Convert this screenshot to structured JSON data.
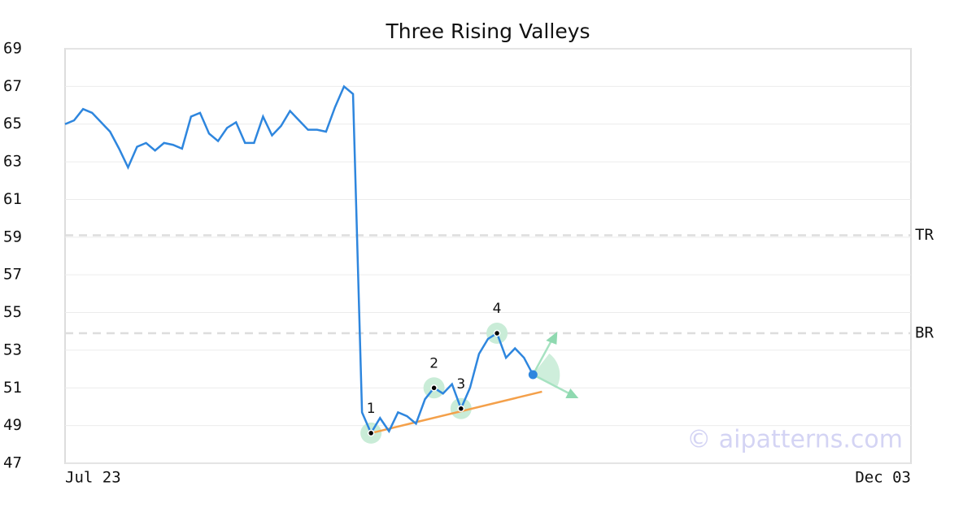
{
  "chart_data": {
    "type": "line",
    "title": "Three Rising Valleys",
    "categories": [
      "Jul 23",
      null,
      null,
      null,
      null,
      null,
      null,
      null,
      null,
      null,
      null,
      null,
      null,
      null,
      null,
      null,
      null,
      null,
      null,
      null,
      null,
      null,
      null,
      null,
      null,
      null,
      null,
      null,
      null,
      null,
      null,
      null,
      null,
      null,
      null,
      null,
      null,
      null,
      null,
      null,
      null,
      null,
      null,
      null,
      null,
      null,
      null,
      null,
      null,
      null,
      null,
      null,
      null,
      null,
      null,
      null,
      null,
      null,
      null,
      null,
      null,
      null,
      null,
      null,
      null,
      null,
      null,
      null,
      null,
      null,
      null,
      null,
      null,
      null,
      null,
      null,
      null,
      null,
      null,
      null,
      null,
      null,
      null,
      null,
      null,
      null,
      null,
      null,
      null,
      null,
      null,
      null,
      null,
      null,
      "Dec 03"
    ],
    "series": [
      {
        "color": "#2e86de",
        "values": [
          65.0,
          65.2,
          65.8,
          65.6,
          65.1,
          64.6,
          63.7,
          62.7,
          63.8,
          64.0,
          63.6,
          64.0,
          63.9,
          63.7,
          65.4,
          65.6,
          64.5,
          64.1,
          64.8,
          65.1,
          64.0,
          64.0,
          65.4,
          64.4,
          64.9,
          65.7,
          65.2,
          64.7,
          64.7,
          64.6,
          65.9,
          67.0,
          66.6,
          49.7,
          48.6,
          49.4,
          48.7,
          49.7,
          49.5,
          49.1,
          50.4,
          51.0,
          50.7,
          51.2,
          49.9,
          51.0,
          52.8,
          53.6,
          53.9,
          52.6,
          53.1,
          52.6,
          51.7,
          null,
          null,
          null,
          null,
          null,
          null,
          null,
          null,
          null,
          null,
          null,
          null,
          null,
          null,
          null,
          null,
          null,
          null,
          null,
          null,
          null,
          null,
          null,
          null,
          null,
          null,
          null,
          null,
          null,
          null,
          null,
          null,
          null,
          null,
          null,
          null,
          null,
          null,
          null,
          null,
          null,
          null
        ]
      }
    ],
    "ylim": [
      47,
      69
    ],
    "yticks": [
      47,
      49,
      51,
      53,
      55,
      57,
      59,
      61,
      63,
      65,
      67,
      69
    ],
    "grid": true,
    "levels": [
      {
        "label": "TR",
        "value": 59.1
      },
      {
        "label": "BR",
        "value": 53.9
      }
    ],
    "pattern_points": [
      {
        "label": "1",
        "index": 34
      },
      {
        "label": "2",
        "index": 41
      },
      {
        "label": "3",
        "index": 44
      },
      {
        "label": "4",
        "index": 48
      }
    ],
    "trend": {
      "x": [
        34,
        53
      ],
      "values": [
        48.6,
        50.8
      ],
      "color": "#f4a04a"
    },
    "watermark": "© aipatterns.com"
  }
}
